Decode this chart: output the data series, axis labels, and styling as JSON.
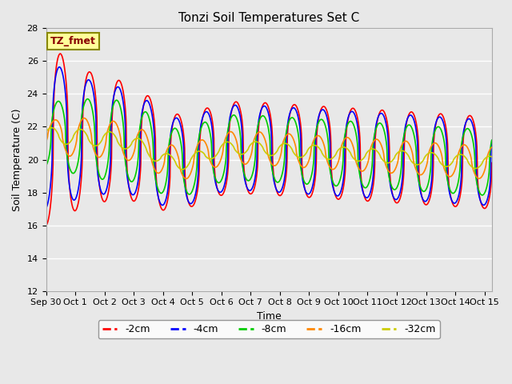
{
  "title": "Tonzi Soil Temperatures Set C",
  "xlabel": "Time",
  "ylabel": "Soil Temperature (C)",
  "ylim": [
    12,
    28
  ],
  "background_color": "#e8e8e8",
  "plot_bg_color": "#e8e8e8",
  "grid_color": "white",
  "xtick_labels": [
    "Sep 30",
    "Oct 1",
    "Oct 2",
    "Oct 3",
    "Oct 4",
    "Oct 5",
    "Oct 6",
    "Oct 7",
    "Oct 8",
    "Oct 9",
    "Oct 10",
    "Oct 11",
    "Oct 12",
    "Oct 13",
    "Oct 14",
    "Oct 15"
  ],
  "legend_label": "TZ_fmet",
  "legend_bg": "#ffff99",
  "legend_border": "#888800",
  "series_labels": [
    "-2cm",
    "-4cm",
    "-8cm",
    "-16cm",
    "-32cm"
  ],
  "series_colors": [
    "#ff0000",
    "#0000ff",
    "#00cc00",
    "#ff8800",
    "#cccc00"
  ],
  "title_fontsize": 11,
  "axis_fontsize": 9,
  "tick_fontsize": 8
}
